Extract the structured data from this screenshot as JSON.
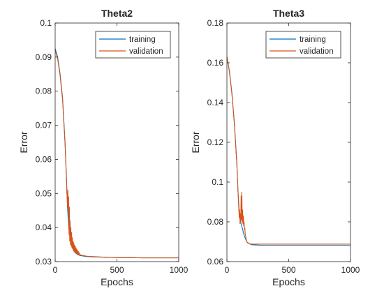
{
  "chart_data": [
    {
      "type": "line",
      "title": "Theta2",
      "xlabel": "Epochs",
      "ylabel": "Error",
      "xlim": [
        0,
        1000
      ],
      "ylim": [
        0.03,
        0.1
      ],
      "x_ticks": [
        "0",
        "500",
        "1000"
      ],
      "y_ticks": [
        "0.03",
        "0.04",
        "0.05",
        "0.06",
        "0.07",
        "0.08",
        "0.09",
        "0.1"
      ],
      "legend_position": "top-right",
      "series": [
        {
          "name": "training",
          "color": "#0072BD",
          "x": [
            0,
            20,
            40,
            60,
            80,
            90,
            100,
            110,
            120,
            130,
            140,
            150,
            160,
            180,
            200,
            250,
            300,
            400,
            500,
            600,
            700,
            800,
            900,
            1000
          ],
          "y": [
            0.0925,
            0.09,
            0.085,
            0.078,
            0.065,
            0.056,
            0.046,
            0.04,
            0.037,
            0.035,
            0.034,
            0.0332,
            0.0327,
            0.0321,
            0.0318,
            0.0315,
            0.0314,
            0.0313,
            0.0312,
            0.0312,
            0.0311,
            0.0311,
            0.0311,
            0.0311
          ]
        },
        {
          "name": "validation",
          "color": "#D95319",
          "x": [
            0,
            20,
            40,
            60,
            80,
            90,
            95,
            100,
            103,
            106,
            109,
            112,
            115,
            118,
            121,
            124,
            127,
            130,
            133,
            136,
            139,
            142,
            145,
            148,
            151,
            154,
            157,
            160,
            163,
            166,
            169,
            172,
            175,
            178,
            181,
            184,
            187,
            190,
            195,
            200,
            210,
            220,
            230,
            250,
            300,
            400,
            500,
            600,
            700,
            800,
            900,
            1000
          ],
          "y": [
            0.092,
            0.0895,
            0.0845,
            0.0775,
            0.0645,
            0.0555,
            0.05,
            0.046,
            0.051,
            0.044,
            0.049,
            0.038,
            0.046,
            0.036,
            0.042,
            0.035,
            0.04,
            0.0345,
            0.0385,
            0.034,
            0.037,
            0.0338,
            0.036,
            0.0332,
            0.0355,
            0.033,
            0.0348,
            0.0328,
            0.0345,
            0.0326,
            0.034,
            0.0324,
            0.0336,
            0.0322,
            0.0333,
            0.0321,
            0.033,
            0.032,
            0.0326,
            0.0319,
            0.032,
            0.0317,
            0.0318,
            0.0316,
            0.0315,
            0.0313,
            0.0312,
            0.0312,
            0.0311,
            0.0311,
            0.0311,
            0.0311
          ]
        }
      ]
    },
    {
      "type": "line",
      "title": "Theta3",
      "xlabel": "Epochs",
      "ylabel": "Error",
      "xlim": [
        0,
        1000
      ],
      "ylim": [
        0.06,
        0.18
      ],
      "x_ticks": [
        "0",
        "500",
        "1000"
      ],
      "y_ticks": [
        "0.06",
        "0.08",
        "0.1",
        "0.12",
        "0.14",
        "0.16",
        "0.18"
      ],
      "legend_position": "top-right",
      "series": [
        {
          "name": "training",
          "color": "#0072BD",
          "x": [
            0,
            20,
            40,
            60,
            80,
            90,
            100,
            110,
            120,
            140,
            160,
            180,
            200,
            250,
            300,
            400,
            500,
            600,
            700,
            800,
            900,
            1000
          ],
          "y": [
            0.163,
            0.156,
            0.145,
            0.13,
            0.11,
            0.095,
            0.085,
            0.08,
            0.078,
            0.073,
            0.07,
            0.069,
            0.0685,
            0.0683,
            0.0682,
            0.0682,
            0.0682,
            0.0682,
            0.0682,
            0.0682,
            0.0682,
            0.0682
          ]
        },
        {
          "name": "validation",
          "color": "#D95319",
          "x": [
            0,
            20,
            40,
            60,
            80,
            90,
            95,
            100,
            103,
            106,
            109,
            112,
            115,
            118,
            121,
            124,
            127,
            130,
            133,
            136,
            139,
            142,
            145,
            148,
            151,
            155,
            160,
            170,
            180,
            200,
            250,
            300,
            400,
            500,
            600,
            700,
            800,
            900,
            1000
          ],
          "y": [
            0.163,
            0.1555,
            0.1445,
            0.1295,
            0.1095,
            0.095,
            0.088,
            0.082,
            0.086,
            0.079,
            0.084,
            0.08,
            0.093,
            0.081,
            0.095,
            0.08,
            0.086,
            0.079,
            0.083,
            0.078,
            0.08,
            0.076,
            0.077,
            0.074,
            0.073,
            0.0715,
            0.07,
            0.0693,
            0.069,
            0.0688,
            0.0688,
            0.0688,
            0.0688,
            0.0688,
            0.0688,
            0.0688,
            0.0688,
            0.0688,
            0.0688
          ]
        }
      ]
    }
  ]
}
